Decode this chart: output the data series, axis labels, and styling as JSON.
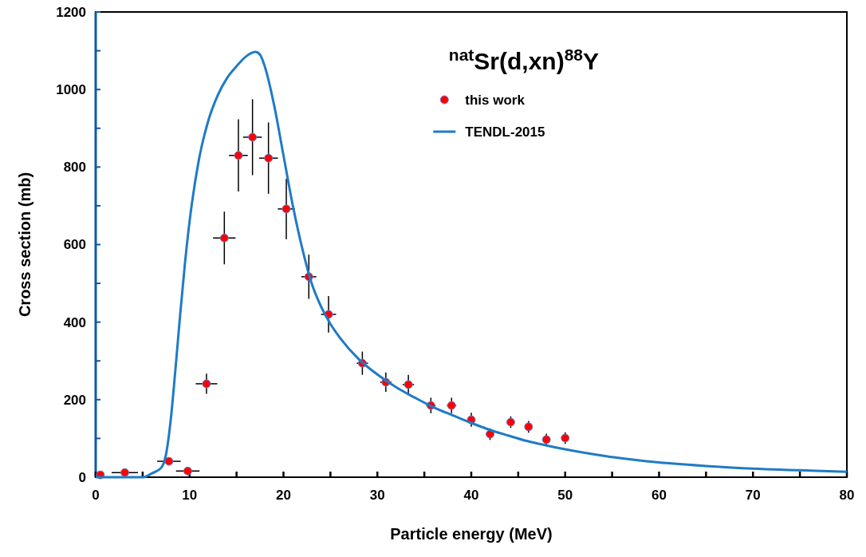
{
  "chart_data": {
    "type": "scatter",
    "title": "$^{nat}$Sr(d,xn)$^{88}$Y",
    "xlabel": "Particle energy (MeV)",
    "ylabel": "Cross section (mb)",
    "xlim": [
      0,
      80
    ],
    "xticks": [
      0,
      10,
      20,
      30,
      40,
      50,
      60,
      70,
      80
    ],
    "ylim": [
      0,
      1200
    ],
    "yticks": [
      0,
      200,
      400,
      600,
      800,
      1000,
      1200
    ],
    "legend": "top",
    "marker": "circle",
    "series": [
      {
        "name": "this work",
        "color": "#ff0000",
        "x": [
          0.5,
          3.1,
          7.8,
          9.8,
          11.8,
          13.7,
          15.2,
          16.7,
          18.4,
          20.3,
          22.7,
          24.8,
          28.4,
          30.9,
          33.3,
          35.7,
          37.9,
          40.0,
          42.0,
          44.2,
          46.1,
          48.0,
          50.0
        ],
        "values": [
          6,
          12,
          41,
          16,
          241,
          617,
          830,
          877,
          823,
          692,
          517,
          420,
          294,
          245,
          239,
          185,
          185,
          148,
          111,
          142,
          130,
          97,
          101
        ],
        "errors": [
          null,
          null,
          null,
          null,
          26,
          68,
          93,
          98,
          92,
          78,
          57,
          47,
          30,
          25,
          25,
          20,
          20,
          18,
          15,
          15,
          15,
          15,
          15
        ],
        "xerrors": [
          null,
          1.4,
          1.25,
          1.25,
          1.15,
          1.2,
          1.0,
          1.0,
          1.0,
          0.9,
          0.8,
          0.8,
          0.6,
          0.6,
          0.6,
          0.5,
          0.5,
          null,
          null,
          null,
          null,
          null,
          null
        ]
      },
      {
        "name": "TENDL-2015",
        "type": "line",
        "color": "#1f7bc6",
        "marker": "none",
        "x": [
          0,
          5,
          6,
          7,
          7.5,
          8,
          8.5,
          9,
          9.5,
          10,
          11,
          12,
          13,
          14,
          15,
          16,
          17,
          17.5,
          18,
          19,
          20,
          21,
          22,
          23,
          24,
          25,
          26,
          28,
          30,
          32,
          34,
          36,
          38,
          40,
          42,
          44,
          46,
          48,
          50,
          55,
          60,
          65,
          70,
          75,
          80
        ],
        "values": [
          0,
          0,
          10,
          25,
          60,
          150,
          280,
          420,
          550,
          660,
          820,
          920,
          985,
          1030,
          1060,
          1085,
          1097,
          1090,
          1060,
          960,
          830,
          700,
          590,
          500,
          440,
          395,
          360,
          305,
          265,
          232,
          205,
          180,
          160,
          140,
          122,
          107,
          93,
          82,
          72,
          52,
          38,
          29,
          22,
          18,
          14
        ]
      }
    ]
  }
}
